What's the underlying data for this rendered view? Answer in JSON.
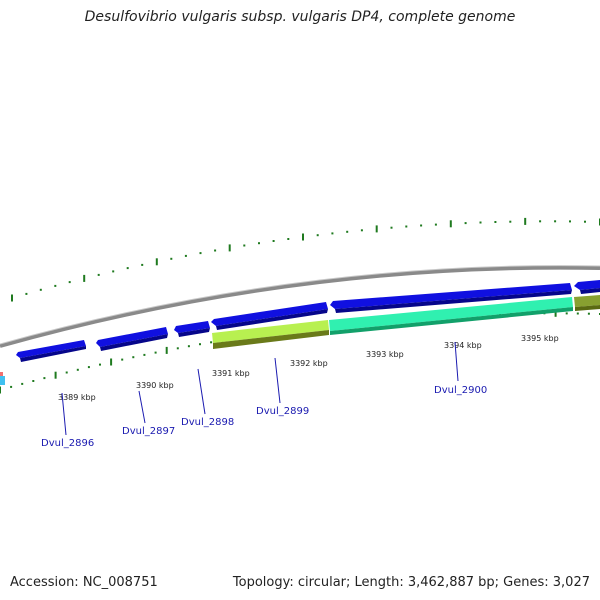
{
  "title": "Desulfovibrio vulgaris subsp. vulgaris DP4, complete genome",
  "accession_text": "Accession: NC_008751",
  "summary_text": "Topology: circular; Length: 3,462,887 bp; Genes: 3,027",
  "colors": {
    "backbone": "#8a8a8a",
    "gene_blue": "#1010e0",
    "gene_blue_dark": "#06068a",
    "gene_lime": "#b8f050",
    "gene_olive": "#6a7a1a",
    "gene_teal": "#30f0b0",
    "gene_teal_dark": "#12a06a",
    "tick_green": "#1f7a1f",
    "label_blue": "#1a1ab0"
  },
  "ticks": [
    {
      "label": "3389 kbp"
    },
    {
      "label": "3390 kbp"
    },
    {
      "label": "3391 kbp"
    },
    {
      "label": "3392 kbp"
    },
    {
      "label": "3393 kbp"
    },
    {
      "label": "3394 kbp"
    },
    {
      "label": "3395 kbp"
    }
  ],
  "genes": [
    {
      "label": "Dvul_2896"
    },
    {
      "label": "Dvul_2897"
    },
    {
      "label": "Dvul_2898"
    },
    {
      "label": "Dvul_2899"
    },
    {
      "label": "Dvul_2900"
    }
  ]
}
